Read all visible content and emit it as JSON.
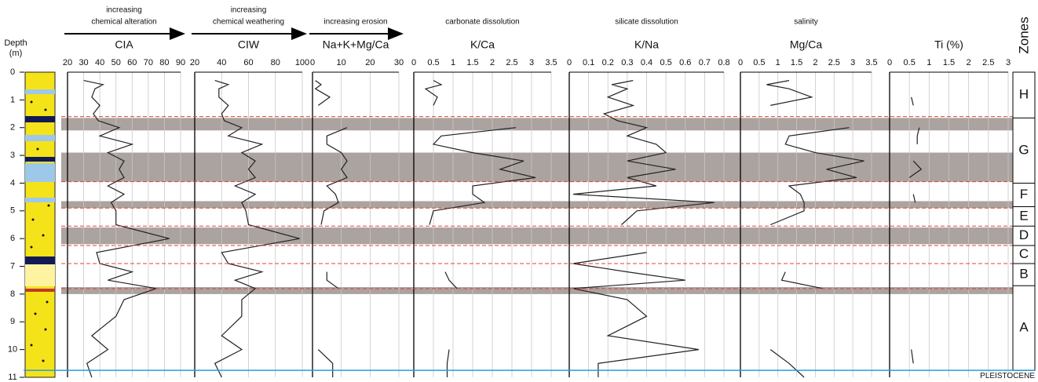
{
  "chart_data": [
    {
      "type": "line",
      "header": [
        "increasing",
        "chemical alteration"
      ],
      "arrow": true,
      "title": "CIA",
      "xlim": [
        20,
        90
      ],
      "xticks": [
        20,
        30,
        40,
        50,
        60,
        70,
        80,
        90
      ],
      "ylim": [
        0,
        11
      ],
      "depth": [
        0.3,
        0.45,
        0.6,
        0.9,
        1.2,
        1.5,
        1.75,
        2.0,
        2.3,
        2.6,
        2.9,
        3.2,
        3.5,
        3.8,
        4.1,
        4.4,
        4.7,
        5.0,
        5.5,
        6.0,
        6.5,
        6.9,
        7.2,
        7.5,
        7.8,
        8.2,
        8.8,
        9.5,
        10.0,
        10.5,
        11.0
      ],
      "values": [
        30,
        42,
        37,
        35,
        40,
        36,
        39,
        52,
        40,
        60,
        45,
        55,
        52,
        55,
        45,
        55,
        47,
        50,
        50,
        83,
        38,
        40,
        60,
        45,
        75,
        55,
        50,
        35,
        45,
        32,
        35
      ],
      "color": "#222222"
    },
    {
      "type": "line",
      "header": [
        "increasing",
        "chemical weathering"
      ],
      "arrow": true,
      "title": "CIW",
      "xlim": [
        20,
        100
      ],
      "xticks": [
        20,
        40,
        60,
        80,
        100
      ],
      "ylim": [
        0,
        11
      ],
      "depth": [
        0.3,
        0.45,
        0.6,
        0.9,
        1.2,
        1.5,
        1.75,
        2.0,
        2.3,
        2.6,
        2.9,
        3.2,
        3.5,
        3.8,
        4.1,
        4.4,
        4.7,
        5.0,
        5.5,
        6.0,
        6.5,
        6.9,
        7.2,
        7.5,
        7.8,
        8.2,
        8.8,
        9.5,
        10.0,
        10.5,
        11.0
      ],
      "values": [
        35,
        45,
        38,
        38,
        45,
        40,
        42,
        55,
        45,
        70,
        55,
        65,
        60,
        65,
        50,
        65,
        55,
        58,
        60,
        98,
        40,
        45,
        70,
        50,
        65,
        55,
        55,
        40,
        55,
        35,
        40
      ],
      "color": "#222222"
    },
    {
      "type": "line",
      "header": [
        "increasing erosion"
      ],
      "arrow": true,
      "title": "Na+K+Mg/Ca",
      "xlim": [
        0,
        30
      ],
      "xticks": [
        0,
        10,
        20,
        30
      ],
      "ylim": [
        0,
        11
      ],
      "depth": [
        0.3,
        0.45,
        0.6,
        0.9,
        1.2,
        1.5,
        1.75,
        2.0,
        2.3,
        2.6,
        2.9,
        3.2,
        3.5,
        3.8,
        4.1,
        4.4,
        4.7,
        5.0,
        5.5,
        6.0,
        6.5,
        6.9,
        7.2,
        7.5,
        7.8,
        8.2,
        8.8,
        9.5,
        10.0,
        10.5,
        11.0
      ],
      "values": [
        1,
        3,
        1,
        6,
        2,
        null,
        null,
        12,
        5,
        5,
        10,
        12,
        10,
        12,
        5,
        8,
        9,
        4,
        3,
        null,
        null,
        null,
        5,
        5,
        9,
        null,
        null,
        null,
        2,
        7,
        7
      ],
      "color": "#222222"
    },
    {
      "type": "line",
      "header": [
        "carbonate dissolution"
      ],
      "arrow": false,
      "title": "K/Ca",
      "xlim": [
        0,
        3.5
      ],
      "xticks": [
        0,
        0.5,
        1,
        1.5,
        2,
        2.5,
        3,
        3.5
      ],
      "ylim": [
        0,
        11
      ],
      "depth": [
        0.3,
        0.45,
        0.6,
        0.9,
        1.2,
        1.5,
        1.75,
        2.0,
        2.3,
        2.6,
        2.9,
        3.2,
        3.5,
        3.8,
        4.1,
        4.4,
        4.7,
        5.0,
        5.5,
        6.0,
        6.5,
        6.9,
        7.2,
        7.5,
        7.8,
        8.2,
        8.8,
        9.5,
        10.0,
        10.5,
        11.0
      ],
      "values": [
        0.5,
        0.7,
        0.3,
        0.6,
        0.5,
        null,
        null,
        2.6,
        0.7,
        0.5,
        1.5,
        2.8,
        2.2,
        3.1,
        1.5,
        1.5,
        1.8,
        0.5,
        0.4,
        null,
        null,
        null,
        0.8,
        0.9,
        1.1,
        null,
        null,
        null,
        0.9,
        0.85,
        0.85
      ],
      "color": "#222222"
    },
    {
      "type": "line",
      "header": [
        "silicate dissolution"
      ],
      "arrow": false,
      "title": "K/Na",
      "xlim": [
        0,
        0.8
      ],
      "xticks": [
        0,
        0.1,
        0.2,
        0.3,
        0.4,
        0.5,
        0.6,
        0.7,
        0.8
      ],
      "ylim": [
        0,
        11
      ],
      "depth": [
        0.3,
        0.45,
        0.6,
        0.9,
        1.2,
        1.5,
        1.75,
        2.0,
        2.3,
        2.6,
        2.9,
        3.2,
        3.5,
        3.8,
        4.1,
        4.4,
        4.7,
        5.0,
        5.5,
        6.0,
        6.5,
        6.9,
        7.2,
        7.5,
        7.8,
        8.2,
        8.8,
        9.5,
        10.0,
        10.5,
        11.0
      ],
      "values": [
        0.33,
        0.22,
        0.3,
        0.2,
        0.33,
        0.18,
        0.25,
        0.4,
        0.3,
        0.45,
        0.5,
        0.3,
        0.55,
        0.3,
        0.45,
        0.02,
        0.75,
        0.35,
        0.27,
        null,
        0.4,
        0.02,
        0.3,
        0.6,
        0.02,
        0.3,
        0.4,
        0.2,
        0.67,
        0.15,
        0.15
      ],
      "color": "#222222"
    },
    {
      "type": "line",
      "header": [
        "salinity"
      ],
      "arrow": false,
      "title": "Mg/Ca",
      "xlim": [
        0,
        3.5
      ],
      "xticks": [
        0,
        0.5,
        1,
        1.5,
        2,
        2.5,
        3,
        3.5
      ],
      "ylim": [
        0,
        11
      ],
      "depth": [
        0.3,
        0.45,
        0.6,
        0.9,
        1.2,
        1.5,
        1.75,
        2.0,
        2.3,
        2.6,
        2.9,
        3.2,
        3.5,
        3.8,
        4.1,
        4.4,
        4.7,
        5.0,
        5.5,
        6.0,
        6.5,
        6.9,
        7.2,
        7.5,
        7.8,
        8.2,
        8.8,
        9.5,
        10.0,
        10.5,
        11.0
      ],
      "values": [
        1.3,
        0.7,
        1.3,
        1.9,
        0.8,
        null,
        null,
        2.9,
        1.3,
        1.2,
        2.0,
        3.3,
        2.3,
        3.1,
        1.3,
        1.6,
        1.7,
        1.7,
        0.8,
        null,
        null,
        null,
        1.2,
        1.1,
        2.2,
        null,
        null,
        null,
        0.8,
        1.3,
        1.7
      ],
      "color": "#222222"
    },
    {
      "type": "line",
      "header": [],
      "arrow": false,
      "title": "Ti (%)",
      "xlim": [
        0,
        3
      ],
      "xticks": [
        0,
        0.5,
        1,
        1.5,
        2,
        2.5,
        3
      ],
      "ylim": [
        0,
        11
      ],
      "depth": [
        0.9,
        1.2,
        1.5,
        2.0,
        2.3,
        2.6,
        2.9,
        3.2,
        3.5,
        3.8,
        4.1,
        4.4,
        4.7,
        5.0,
        10.0,
        10.5
      ],
      "values": [
        0.55,
        0.6,
        null,
        0.75,
        0.7,
        0.7,
        null,
        0.6,
        0.8,
        0.5,
        null,
        0.6,
        0.65,
        null,
        0.55,
        0.6
      ],
      "color": "#222222"
    }
  ],
  "depth_axis": {
    "label": [
      "Depth",
      "(m)"
    ],
    "ylim": [
      0,
      11
    ],
    "yticks": [
      0,
      1,
      2,
      3,
      4,
      5,
      6,
      7,
      8,
      9,
      10,
      11
    ]
  },
  "bands": [
    [
      1.65,
      2.1
    ],
    [
      2.9,
      3.95
    ],
    [
      4.65,
      4.9
    ],
    [
      5.6,
      6.2
    ],
    [
      7.75,
      8.0
    ]
  ],
  "boundaries": [
    1.6,
    3.95,
    4.9,
    5.55,
    6.25,
    6.9,
    7.8
  ],
  "zones_title": "Zones",
  "zones": [
    {
      "label": "H",
      "top": 0,
      "bottom": 1.65
    },
    {
      "label": "G",
      "top": 1.65,
      "bottom": 4.0
    },
    {
      "label": "F",
      "top": 4.0,
      "bottom": 4.85
    },
    {
      "label": "E",
      "top": 4.85,
      "bottom": 5.55
    },
    {
      "label": "D",
      "top": 5.55,
      "bottom": 6.25
    },
    {
      "label": "C",
      "top": 6.25,
      "bottom": 6.9
    },
    {
      "label": "B",
      "top": 6.9,
      "bottom": 7.7
    },
    {
      "label": "A",
      "top": 7.7,
      "bottom": 10.75
    }
  ],
  "base": {
    "label": "PLEISTOCENE",
    "depth": 10.75
  }
}
